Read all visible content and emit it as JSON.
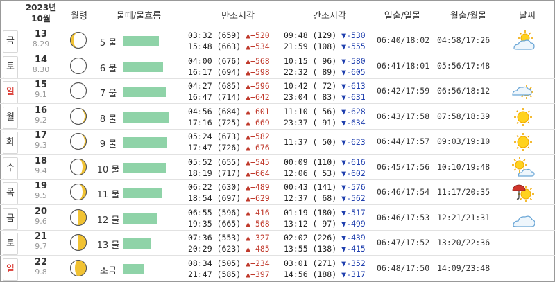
{
  "header": {
    "year": "2023년",
    "month": "10월",
    "moon_age": "월령",
    "tide_flow": "물때/물흐름",
    "high_tide": "만조시각",
    "low_tide": "간조시각",
    "sun": "일출/일몰",
    "moon": "월출/월몰",
    "weather": "날씨"
  },
  "colors": {
    "bar": "#8fd3a8",
    "up": "#c0392b",
    "down": "#1f3fae",
    "sunday": "#d9322b",
    "moon_fill": "#f1c232"
  },
  "rows": [
    {
      "dow": "금",
      "red": false,
      "day": "13",
      "lunar": "8.29",
      "phase": "waning-crescent",
      "mul": "5 물",
      "flow": 0.68,
      "hi1": "03:32 (659)",
      "hi1c": "▲+520",
      "hi2": "15:48 (663)",
      "hi2c": "▲+534",
      "lo1": "09:48 (129)",
      "lo1c": "▼-530",
      "lo2": "21:59 (108)",
      "lo2c": "▼-555",
      "sun": "06:40/18:02",
      "moon": "04:58/17:26",
      "wx": "partly-cloudy-icon"
    },
    {
      "dow": "토",
      "red": false,
      "day": "14",
      "lunar": "8.30",
      "phase": "new",
      "mul": "6 물",
      "flow": 0.76,
      "hi1": "04:00 (676)",
      "hi1c": "▲+568",
      "hi2": "16:17 (694)",
      "hi2c": "▲+598",
      "lo1": "10:15 ( 96)",
      "lo1c": "▼-580",
      "lo2": "22:32 ( 89)",
      "lo2c": "▼-605",
      "sun": "06:41/18:01",
      "moon": "05:56/17:48",
      "wx": ""
    },
    {
      "dow": "일",
      "red": true,
      "day": "15",
      "lunar": "9.1",
      "phase": "new",
      "mul": "7 물",
      "flow": 0.81,
      "hi1": "04:27 (685)",
      "hi1c": "▲+596",
      "hi2": "16:47 (714)",
      "hi2c": "▲+642",
      "lo1": "10:42 ( 72)",
      "lo1c": "▼-613",
      "lo2": "23:04 ( 83)",
      "lo2c": "▼-631",
      "sun": "06:42/17:59",
      "moon": "06:56/18:12",
      "wx": "cloudy-sun-icon"
    },
    {
      "dow": "월",
      "red": false,
      "day": "16",
      "lunar": "9.2",
      "phase": "waxing-thin",
      "mul": "8 물",
      "flow": 0.88,
      "hi1": "04:56 (684)",
      "hi1c": "▲+601",
      "hi2": "17:16 (725)",
      "hi2c": "▲+669",
      "lo1": "11:10 ( 56)",
      "lo1c": "▼-628",
      "lo2": "23:37 ( 91)",
      "lo2c": "▼-634",
      "sun": "06:43/17:58",
      "moon": "07:58/18:39",
      "wx": "sunny-icon"
    },
    {
      "dow": "화",
      "red": false,
      "day": "17",
      "lunar": "9.3",
      "phase": "waxing-thin",
      "mul": "9 물",
      "flow": 0.84,
      "hi1": "05:24 (673)",
      "hi1c": "▲+582",
      "hi2": "17:47 (726)",
      "hi2c": "▲+676",
      "lo1": "11:37 ( 50)",
      "lo1c": "▼-623",
      "lo2": "",
      "lo2c": "",
      "sun": "06:44/17:57",
      "moon": "09:03/19:10",
      "wx": "sunny-icon"
    },
    {
      "dow": "수",
      "red": false,
      "day": "18",
      "lunar": "9.4",
      "phase": "waxing-crescent",
      "mul": "10 물",
      "flow": 0.81,
      "hi1": "05:52 (655)",
      "hi1c": "▲+545",
      "hi2": "18:19 (717)",
      "hi2c": "▲+664",
      "lo1": "00:09 (110)",
      "lo1c": "▼-616",
      "lo2": "12:06 ( 53)",
      "lo2c": "▼-602",
      "sun": "06:45/17:56",
      "moon": "10:10/19:48",
      "wx": "sun-cloud-icon"
    },
    {
      "dow": "목",
      "red": false,
      "day": "19",
      "lunar": "9.5",
      "phase": "waxing-crescent",
      "mul": "11 물",
      "flow": 0.74,
      "hi1": "06:22 (630)",
      "hi1c": "▲+489",
      "hi2": "18:54 (697)",
      "hi2c": "▲+629",
      "lo1": "00:43 (141)",
      "lo1c": "▼-576",
      "lo2": "12:37 ( 68)",
      "lo2c": "▼-562",
      "sun": "06:46/17:54",
      "moon": "11:17/20:35",
      "wx": "umbrella-sun-icon"
    },
    {
      "dow": "금",
      "red": false,
      "day": "20",
      "lunar": "9.6",
      "phase": "first-quarter",
      "mul": "12 물",
      "flow": 0.66,
      "hi1": "06:55 (596)",
      "hi1c": "▲+416",
      "hi2": "19:35 (665)",
      "hi2c": "▲+568",
      "lo1": "01:19 (180)",
      "lo1c": "▼-517",
      "lo2": "13:12 ( 97)",
      "lo2c": "▼-499",
      "sun": "06:46/17:53",
      "moon": "12:21/21:31",
      "wx": "cloudy-icon"
    },
    {
      "dow": "토",
      "red": false,
      "day": "21",
      "lunar": "9.7",
      "phase": "first-quarter",
      "mul": "13 물",
      "flow": 0.53,
      "hi1": "07:36 (553)",
      "hi1c": "▲+327",
      "hi2": "20:29 (623)",
      "hi2c": "▲+485",
      "lo1": "02:02 (226)",
      "lo1c": "▼-439",
      "lo2": "13:55 (138)",
      "lo2c": "▼-415",
      "sun": "06:47/17:52",
      "moon": "13:20/22:36",
      "wx": ""
    },
    {
      "dow": "일",
      "red": true,
      "day": "22",
      "lunar": "9.8",
      "phase": "waxing-gibbous",
      "mul": "조금",
      "flow": 0.4,
      "hi1": "08:34 (505)",
      "hi1c": "▲+234",
      "hi2": "21:47 (585)",
      "hi2c": "▲+397",
      "lo1": "03:01 (271)",
      "lo1c": "▼-352",
      "lo2": "14:56 (188)",
      "lo2c": "▼-317",
      "sun": "06:48/17:50",
      "moon": "14:09/23:48",
      "wx": ""
    }
  ]
}
